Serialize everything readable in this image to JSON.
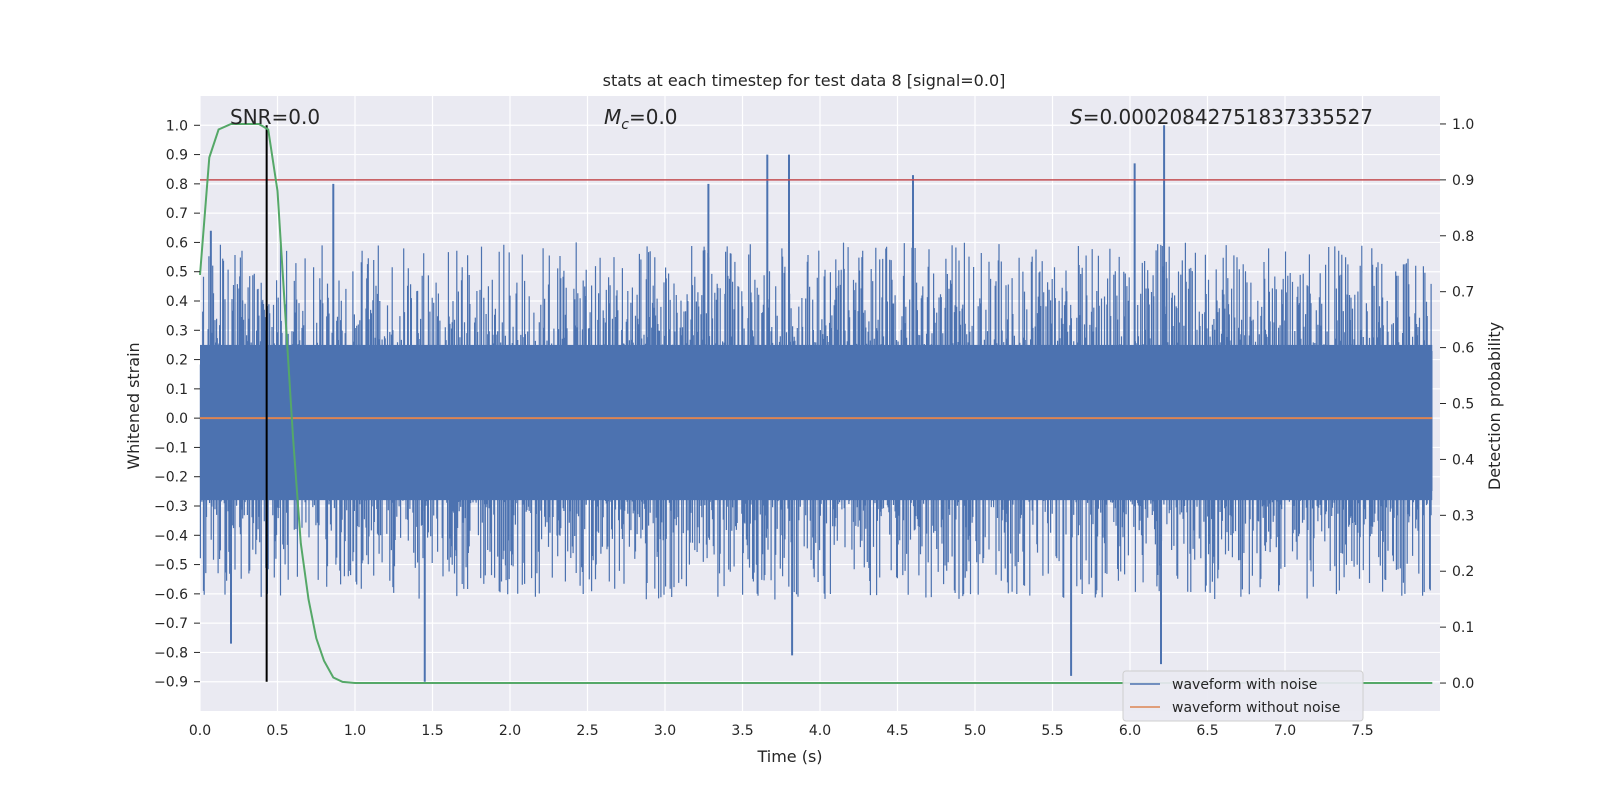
{
  "chart_data": {
    "type": "line",
    "title": "stats at each timestep for test data 8 [signal=0.0]",
    "xlabel": "Time (s)",
    "ylabel": "Whitened strain",
    "ylabel_right": "Detection probability",
    "xlim": [
      0.0,
      8.0
    ],
    "ylim": [
      -1.0,
      1.1
    ],
    "ylim_right": [
      -0.05,
      1.05
    ],
    "xticks": [
      0.0,
      0.5,
      1.0,
      1.5,
      2.0,
      2.5,
      3.0,
      3.5,
      4.0,
      4.5,
      5.0,
      5.5,
      6.0,
      6.5,
      7.0,
      7.5
    ],
    "xtick_labels": [
      "0.0",
      "0.5",
      "1.0",
      "1.5",
      "2.0",
      "2.5",
      "3.0",
      "3.5",
      "4.0",
      "4.5",
      "5.0",
      "5.5",
      "6.0",
      "6.5",
      "7.0",
      "7.5"
    ],
    "yticks": [
      1.0,
      0.9,
      0.8,
      0.7,
      0.6,
      0.5,
      0.4,
      0.3,
      0.2,
      0.1,
      0.0,
      -0.1,
      -0.2,
      -0.3,
      -0.4,
      -0.5,
      -0.6,
      -0.7,
      -0.8,
      -0.9
    ],
    "ytick_labels": [
      "1.0",
      "0.9",
      "0.8",
      "0.7",
      "0.6",
      "0.5",
      "0.4",
      "0.3",
      "0.2",
      "0.1",
      "0.0",
      "−0.1",
      "−0.2",
      "−0.3",
      "−0.4",
      "−0.5",
      "−0.6",
      "−0.7",
      "−0.8",
      "−0.9"
    ],
    "yticks_right": [
      1.0,
      0.9,
      0.8,
      0.7,
      0.6,
      0.5,
      0.4,
      0.3,
      0.2,
      0.1,
      0.0
    ],
    "ytick_labels_right": [
      "1.0",
      "0.9",
      "0.8",
      "0.7",
      "0.6",
      "0.5",
      "0.4",
      "0.3",
      "0.2",
      "0.1",
      "0.0"
    ],
    "grid": true,
    "annotations": {
      "snr": "SNR=0.0",
      "mc_symbol": "M",
      "mc_sub": "c",
      "mc_rest": "=0.0",
      "s_symbol": "S",
      "s_rest": "=0.00020842751837335527"
    },
    "series": [
      {
        "name": "waveform with noise",
        "color": "#4c72b0",
        "axis": "left",
        "description_values": {
          "typical_range": [
            -0.35,
            0.3
          ],
          "max": 1.0,
          "max_at": 6.22,
          "min": -0.9,
          "min_at": 1.45
        },
        "peaks": [
          {
            "x": 0.07,
            "y": 0.64
          },
          {
            "x": 0.2,
            "y": -0.77
          },
          {
            "x": 0.86,
            "y": 0.8
          },
          {
            "x": 1.45,
            "y": -0.9
          },
          {
            "x": 3.28,
            "y": 0.8
          },
          {
            "x": 3.66,
            "y": 0.9
          },
          {
            "x": 3.8,
            "y": 0.9
          },
          {
            "x": 3.82,
            "y": -0.81
          },
          {
            "x": 4.6,
            "y": 0.83
          },
          {
            "x": 5.62,
            "y": -0.88
          },
          {
            "x": 6.03,
            "y": 0.87
          },
          {
            "x": 6.22,
            "y": 1.0
          },
          {
            "x": 6.2,
            "y": -0.84
          }
        ]
      },
      {
        "name": "waveform without noise",
        "color": "#dd8452",
        "axis": "left",
        "x": [
          0.0,
          8.0
        ],
        "y": [
          0.0,
          0.0
        ]
      },
      {
        "name": "detection probability",
        "color": "#55a868",
        "axis": "right",
        "x": [
          0.0,
          0.06,
          0.12,
          0.2,
          0.3,
          0.38,
          0.44,
          0.5,
          0.55,
          0.6,
          0.65,
          0.7,
          0.75,
          0.8,
          0.86,
          0.92,
          1.0,
          1.5,
          7.95
        ],
        "y": [
          0.73,
          0.94,
          0.99,
          1.0,
          1.0,
          1.0,
          0.99,
          0.88,
          0.66,
          0.44,
          0.25,
          0.15,
          0.08,
          0.04,
          0.01,
          0.002,
          0.0,
          0.0,
          0.0
        ]
      }
    ],
    "threshold_line": {
      "color": "#c44e52",
      "axis": "right",
      "value": 0.9
    },
    "marker_line": {
      "color": "#000000",
      "x": 0.43,
      "y_from": -0.9,
      "y_to": 1.0
    },
    "legend": {
      "location": "lower-right",
      "entries": [
        {
          "label": "waveform with noise",
          "color": "#4c72b0"
        },
        {
          "label": "waveform without noise",
          "color": "#dd8452"
        }
      ]
    }
  }
}
